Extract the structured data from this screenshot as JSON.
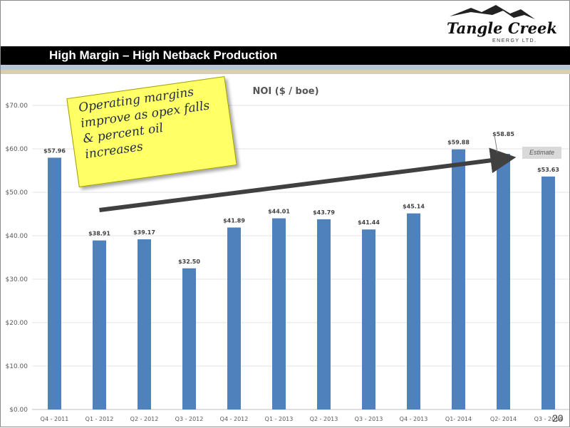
{
  "header": {
    "title": "High Margin – High Netback Production",
    "logo_text": "Tangle Creek",
    "logo_sub": "ENERGY LTD."
  },
  "callout": {
    "text": "Operating margins improve as opex falls & percent oil increases"
  },
  "estimate_label": "Estimate",
  "page_number": "20",
  "colors": {
    "bar": "#4f81bd",
    "arrow": "#404040",
    "sticky": "#ffff66"
  },
  "chart_data": {
    "type": "bar",
    "title": "NOI ($ / boe)",
    "categories": [
      "Q4 - 2011",
      "Q1 - 2012",
      "Q2 - 2012",
      "Q3 - 2012",
      "Q4 - 2012",
      "Q1 - 2013",
      "Q2 - 2013",
      "Q3 - 2013",
      "Q4 - 2013",
      "Q1- 2014",
      "Q2- 2014",
      "Q3 - 2014"
    ],
    "values": [
      57.96,
      38.91,
      39.17,
      32.5,
      41.89,
      44.01,
      43.79,
      41.44,
      45.14,
      59.88,
      58.85,
      53.63
    ],
    "data_labels": [
      "$57.96",
      "$38.91",
      "$39.17",
      "$32.50",
      "$41.89",
      "$44.01",
      "$43.79",
      "$41.44",
      "$45.14",
      "$59.88",
      "$58.85",
      "$53.63"
    ],
    "y_ticks": [
      "$0.00",
      "$10.00",
      "$20.00",
      "$30.00",
      "$40.00",
      "$50.00",
      "$60.00",
      "$70.00"
    ],
    "ylim": [
      0,
      70
    ],
    "grid": true,
    "trend_arrow": {
      "from": [
        1,
        45.9
      ],
      "to": [
        10,
        57.7
      ]
    }
  }
}
